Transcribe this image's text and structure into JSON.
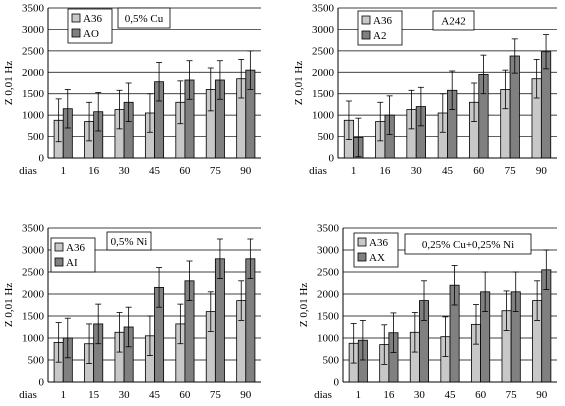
{
  "colors": {
    "series_a": "#c8c8c8",
    "series_b": "#808080",
    "grid": "#000000",
    "axis": "#000000"
  },
  "chart_data": [
    {
      "type": "bar",
      "panel": "top-left",
      "title": "0,5% Cu",
      "xlabel": "dias",
      "ylabel": "Z 0,01 Hz",
      "ylim": [
        0,
        3500
      ],
      "yticks": [
        0,
        500,
        1000,
        1500,
        2000,
        2500,
        3000,
        3500
      ],
      "categories": [
        "1",
        "16",
        "30",
        "45",
        "60",
        "75",
        "90"
      ],
      "grid": true,
      "legend_position": "top-left",
      "series": [
        {
          "name": "A36",
          "values": [
            880,
            850,
            1130,
            1050,
            1300,
            1600,
            1850
          ],
          "errors": [
            500,
            450,
            450,
            450,
            500,
            500,
            450
          ]
        },
        {
          "name": "AO",
          "values": [
            1150,
            1080,
            1300,
            1780,
            1820,
            1820,
            2050
          ],
          "errors": [
            450,
            450,
            450,
            450,
            450,
            450,
            450
          ]
        }
      ]
    },
    {
      "type": "bar",
      "panel": "top-right",
      "title": "A242",
      "xlabel": "dias",
      "ylabel": "Z 0,01 Hz",
      "ylim": [
        0,
        3500
      ],
      "yticks": [
        0,
        500,
        1000,
        1500,
        2000,
        2500,
        3000,
        3500
      ],
      "categories": [
        "1",
        "16",
        "30",
        "45",
        "60",
        "75",
        "90"
      ],
      "grid": true,
      "legend_position": "top-left",
      "series": [
        {
          "name": "A36",
          "values": [
            880,
            850,
            1130,
            1050,
            1300,
            1600,
            1850
          ],
          "errors": [
            450,
            450,
            450,
            450,
            450,
            450,
            450
          ]
        },
        {
          "name": "A2",
          "values": [
            480,
            1000,
            1200,
            1580,
            1950,
            2380,
            2480
          ],
          "errors": [
            450,
            450,
            450,
            450,
            450,
            400,
            400
          ]
        }
      ]
    },
    {
      "type": "bar",
      "panel": "bottom-left",
      "title": "0,5% Ni",
      "xlabel": "dias",
      "ylabel": "Z 0,01 Hz",
      "ylim": [
        0,
        3500
      ],
      "yticks": [
        0,
        500,
        1000,
        1500,
        2000,
        2500,
        3000,
        3500
      ],
      "categories": [
        "1",
        "15",
        "30",
        "45",
        "60",
        "75",
        "90"
      ],
      "grid": true,
      "legend_position": "top-left",
      "series": [
        {
          "name": "A36",
          "values": [
            900,
            870,
            1130,
            1050,
            1320,
            1600,
            1850
          ],
          "errors": [
            450,
            450,
            450,
            450,
            450,
            450,
            450
          ]
        },
        {
          "name": "AI",
          "values": [
            1000,
            1320,
            1250,
            2150,
            2300,
            2800,
            2800
          ],
          "errors": [
            450,
            450,
            450,
            450,
            450,
            450,
            450
          ]
        }
      ]
    },
    {
      "type": "bar",
      "panel": "bottom-right",
      "title": "0,25% Cu+0,25% Ni",
      "xlabel": "dias",
      "ylabel": "Z 0,01 Hz",
      "ylim": [
        0,
        3500
      ],
      "yticks": [
        0,
        500,
        1000,
        1500,
        2000,
        2500,
        3000,
        3500
      ],
      "categories": [
        "1",
        "16",
        "30",
        "45",
        "60",
        "75",
        "90"
      ],
      "grid": true,
      "legend_position": "top-left",
      "series": [
        {
          "name": "A36",
          "values": [
            880,
            850,
            1130,
            1030,
            1310,
            1620,
            1850
          ],
          "errors": [
            450,
            450,
            450,
            450,
            450,
            450,
            450
          ]
        },
        {
          "name": "AX",
          "values": [
            950,
            1120,
            1850,
            2200,
            2050,
            2050,
            2550
          ],
          "errors": [
            450,
            450,
            450,
            450,
            450,
            450,
            450
          ]
        }
      ]
    }
  ]
}
